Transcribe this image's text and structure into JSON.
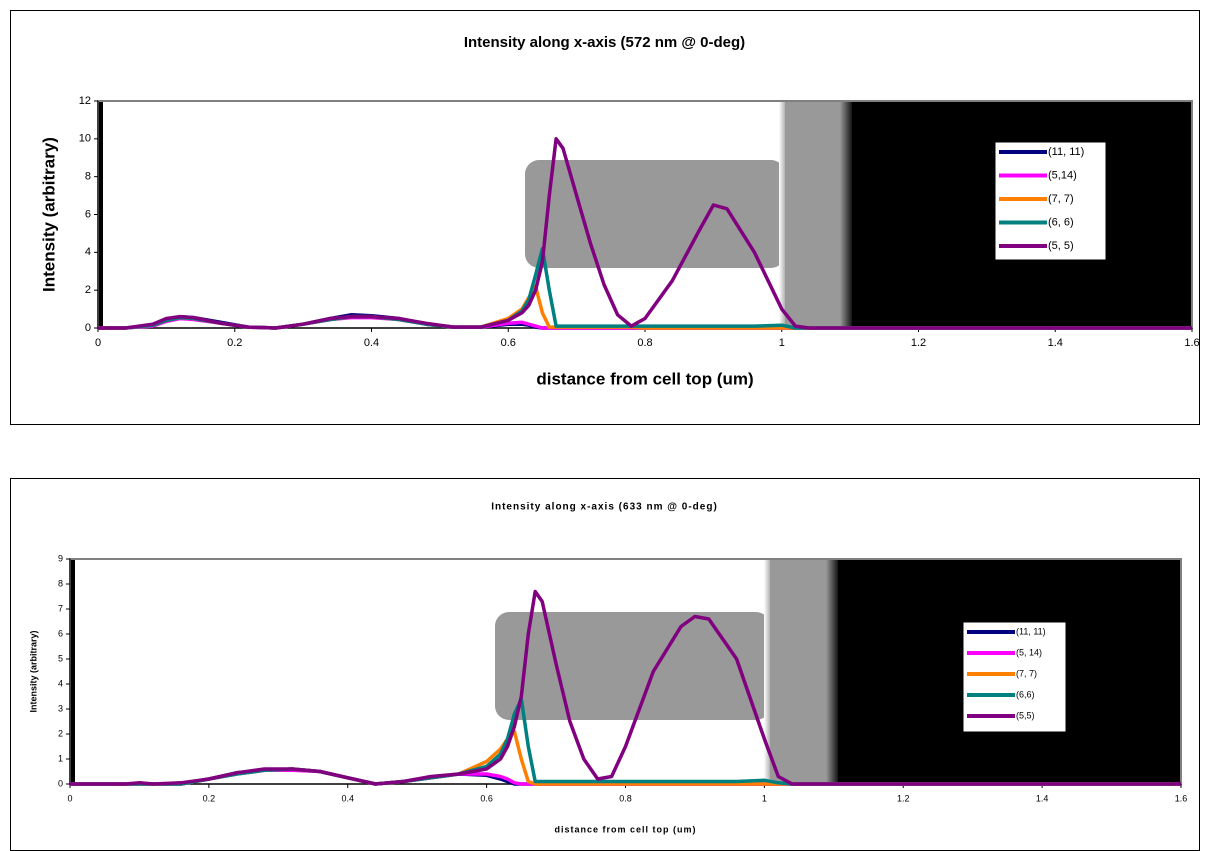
{
  "chart_data": [
    {
      "type": "line",
      "title": "Intensity along x-axis (572 nm @ 0-deg)",
      "x_label": "distance from cell top (um)",
      "y_label": "Intensity (arbitrary)",
      "x": [
        0,
        0.04,
        0.08,
        0.1,
        0.12,
        0.14,
        0.18,
        0.22,
        0.26,
        0.3,
        0.34,
        0.37,
        0.4,
        0.44,
        0.48,
        0.52,
        0.56,
        0.6,
        0.62,
        0.63,
        0.64,
        0.65,
        0.66,
        0.67,
        0.68,
        0.7,
        0.72,
        0.74,
        0.76,
        0.78,
        0.8,
        0.84,
        0.88,
        0.9,
        0.92,
        0.96,
        1.0,
        1.02,
        1.04,
        1.6
      ],
      "series": [
        {
          "name": "(11, 11)",
          "color": "#000080",
          "values": [
            0,
            0,
            0.15,
            0.4,
            0.6,
            0.55,
            0.3,
            0.05,
            0,
            0.2,
            0.5,
            0.7,
            0.65,
            0.5,
            0.2,
            0.05,
            0.05,
            0.2,
            0.2,
            0.15,
            0.05,
            0,
            0,
            0,
            0,
            0,
            0,
            0,
            0,
            0,
            0,
            0,
            0,
            0,
            0,
            0,
            0,
            0,
            0,
            0
          ]
        },
        {
          "name": "(5,14)",
          "color": "#ff00ff",
          "values": [
            0,
            0,
            0.1,
            0.35,
            0.5,
            0.45,
            0.25,
            0.05,
            0,
            0.2,
            0.45,
            0.55,
            0.55,
            0.45,
            0.2,
            0.05,
            0.05,
            0.25,
            0.3,
            0.2,
            0.1,
            0,
            0,
            0,
            0,
            0,
            0,
            0,
            0,
            0,
            0,
            0,
            0,
            0,
            0,
            0,
            0,
            0,
            0,
            0
          ]
        },
        {
          "name": "(7, 7)",
          "color": "#ff7f00",
          "values": [
            0,
            0,
            0.15,
            0.4,
            0.55,
            0.5,
            0.25,
            0.05,
            0,
            0.2,
            0.45,
            0.6,
            0.6,
            0.45,
            0.2,
            0.05,
            0.05,
            0.5,
            1,
            1.6,
            2.2,
            0.8,
            0.05,
            0.05,
            0.05,
            0.05,
            0.05,
            0.05,
            0.05,
            0.05,
            0,
            0,
            0,
            0,
            0,
            0,
            0,
            0,
            0,
            0
          ]
        },
        {
          "name": "(6, 6)",
          "color": "#008080",
          "values": [
            0,
            0,
            0.15,
            0.4,
            0.55,
            0.5,
            0.25,
            0.05,
            0,
            0.2,
            0.45,
            0.6,
            0.6,
            0.45,
            0.2,
            0.05,
            0.05,
            0.4,
            0.9,
            1.5,
            2.8,
            4.2,
            2,
            0.1,
            0.1,
            0.1,
            0.1,
            0.1,
            0.1,
            0.1,
            0.1,
            0.1,
            0.1,
            0.1,
            0.1,
            0.1,
            0.15,
            0,
            0,
            0
          ]
        },
        {
          "name": "(5, 5)",
          "color": "#800080",
          "values": [
            0,
            0,
            0.2,
            0.5,
            0.6,
            0.55,
            0.25,
            0.05,
            0,
            0.2,
            0.5,
            0.6,
            0.6,
            0.5,
            0.25,
            0.05,
            0.05,
            0.4,
            0.8,
            1.2,
            2,
            3.5,
            7,
            10,
            9.5,
            7,
            4.5,
            2.3,
            0.7,
            0.1,
            0.5,
            2.5,
            5.2,
            6.5,
            6.3,
            4,
            1,
            0.1,
            0,
            0
          ]
        }
      ],
      "xlim": [
        0,
        1.6
      ],
      "xticks": [
        0,
        0.2,
        0.4,
        0.6,
        0.8,
        1,
        1.2,
        1.4,
        1.6
      ],
      "ylim": [
        0,
        12
      ],
      "yticks": [
        0,
        2,
        4,
        6,
        8,
        10,
        12
      ],
      "grid": false
    },
    {
      "type": "line",
      "title": "Intensity along x-axis (633 nm @ 0-deg)",
      "x_label": "distance from cell top (um)",
      "y_label": "Intensity (arbitrary)",
      "x": [
        0,
        0.04,
        0.08,
        0.1,
        0.12,
        0.16,
        0.2,
        0.24,
        0.28,
        0.32,
        0.36,
        0.4,
        0.44,
        0.48,
        0.52,
        0.56,
        0.6,
        0.62,
        0.63,
        0.64,
        0.65,
        0.66,
        0.67,
        0.68,
        0.7,
        0.72,
        0.74,
        0.76,
        0.78,
        0.8,
        0.84,
        0.88,
        0.9,
        0.92,
        0.96,
        1.0,
        1.02,
        1.04,
        1.6
      ],
      "series": [
        {
          "name": "(11, 11)",
          "color": "#000080",
          "values": [
            0,
            0,
            0,
            0,
            0,
            0,
            0.2,
            0.45,
            0.55,
            0.6,
            0.5,
            0.25,
            0,
            0.1,
            0.25,
            0.4,
            0.35,
            0.2,
            0.1,
            0,
            0,
            0,
            0,
            0,
            0,
            0,
            0,
            0,
            0,
            0,
            0,
            0,
            0,
            0,
            0,
            0,
            0,
            0,
            0
          ]
        },
        {
          "name": "(5, 14)",
          "color": "#ff00ff",
          "values": [
            0,
            0,
            0,
            0,
            0,
            0,
            0.2,
            0.4,
            0.55,
            0.55,
            0.5,
            0.25,
            0,
            0.1,
            0.25,
            0.4,
            0.4,
            0.3,
            0.2,
            0.05,
            0,
            0,
            0,
            0,
            0,
            0,
            0,
            0,
            0,
            0,
            0,
            0,
            0,
            0,
            0,
            0,
            0,
            0,
            0
          ]
        },
        {
          "name": "(7, 7)",
          "color": "#ff7f00",
          "values": [
            0,
            0,
            0,
            0,
            0,
            0,
            0.2,
            0.4,
            0.55,
            0.6,
            0.5,
            0.25,
            0,
            0.1,
            0.25,
            0.4,
            0.9,
            1.4,
            1.8,
            2.1,
            1,
            0.1,
            0,
            0,
            0,
            0,
            0,
            0,
            0,
            0,
            0,
            0,
            0,
            0,
            0,
            0,
            0,
            0,
            0
          ]
        },
        {
          "name": "(6,6)",
          "color": "#008080",
          "values": [
            0,
            0,
            0,
            0,
            0,
            0,
            0.2,
            0.4,
            0.55,
            0.6,
            0.5,
            0.25,
            0,
            0.1,
            0.25,
            0.4,
            0.7,
            1.2,
            1.8,
            2.8,
            3.4,
            1.5,
            0.1,
            0.1,
            0.1,
            0.1,
            0.1,
            0.1,
            0.1,
            0.1,
            0.1,
            0.1,
            0.1,
            0.1,
            0.1,
            0.15,
            0.05,
            0,
            0
          ]
        },
        {
          "name": "(5,5)",
          "color": "#800080",
          "values": [
            0,
            0,
            0,
            0.05,
            0,
            0.05,
            0.2,
            0.45,
            0.6,
            0.6,
            0.5,
            0.25,
            0,
            0.1,
            0.3,
            0.4,
            0.6,
            1,
            1.5,
            2.3,
            3.5,
            6,
            7.7,
            7.3,
            4.8,
            2.5,
            1,
            0.2,
            0.3,
            1.5,
            4.5,
            6.3,
            6.7,
            6.6,
            5,
            1.8,
            0.3,
            0,
            0
          ]
        }
      ],
      "xlim": [
        0,
        1.6
      ],
      "xticks": [
        0,
        0.2,
        0.4,
        0.6,
        0.8,
        1,
        1.2,
        1.4,
        1.6
      ],
      "ylim": [
        0,
        9
      ],
      "yticks": [
        0,
        1,
        2,
        3,
        4,
        5,
        6,
        7,
        8,
        9
      ],
      "grid": false
    }
  ]
}
